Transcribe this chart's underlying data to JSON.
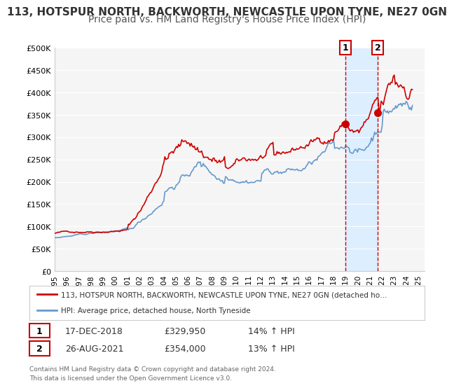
{
  "title1": "113, HOTSPUR NORTH, BACKWORTH, NEWCASTLE UPON TYNE, NE27 0GN",
  "title2": "Price paid vs. HM Land Registry's House Price Index (HPI)",
  "ylim": [
    0,
    500000
  ],
  "yticks": [
    0,
    50000,
    100000,
    150000,
    200000,
    250000,
    300000,
    350000,
    400000,
    450000,
    500000
  ],
  "ytick_labels": [
    "£0",
    "£50K",
    "£100K",
    "£150K",
    "£200K",
    "£250K",
    "£300K",
    "£350K",
    "£400K",
    "£450K",
    "£500K"
  ],
  "xlim_start": 1995.0,
  "xlim_end": 2025.5,
  "xticks": [
    1995,
    1996,
    1997,
    1998,
    1999,
    2000,
    2001,
    2002,
    2003,
    2004,
    2005,
    2006,
    2007,
    2008,
    2009,
    2010,
    2011,
    2012,
    2013,
    2014,
    2015,
    2016,
    2017,
    2018,
    2019,
    2020,
    2021,
    2022,
    2023,
    2024,
    2025
  ],
  "red_color": "#cc0000",
  "blue_color": "#6699cc",
  "marker_color": "#cc0000",
  "vline1_x": 2018.96,
  "vline2_x": 2021.65,
  "marker1_x": 2018.96,
  "marker1_y": 329950,
  "marker2_x": 2021.65,
  "marker2_y": 354000,
  "legend_line1": "113, HOTSPUR NORTH, BACKWORTH, NEWCASTLE UPON TYNE, NE27 0GN (detached ho…",
  "legend_line2": "HPI: Average price, detached house, North Tyneside",
  "table_row1": [
    "1",
    "17-DEC-2018",
    "£329,950",
    "14% ↑ HPI"
  ],
  "table_row2": [
    "2",
    "26-AUG-2021",
    "£354,000",
    "13% ↑ HPI"
  ],
  "footer1": "Contains HM Land Registry data © Crown copyright and database right 2024.",
  "footer2": "This data is licensed under the Open Government Licence v3.0.",
  "background_color": "#ffffff",
  "plot_bg_color": "#f5f5f5",
  "shaded_region_color": "#ddeeff",
  "title1_fontsize": 11,
  "title2_fontsize": 10
}
